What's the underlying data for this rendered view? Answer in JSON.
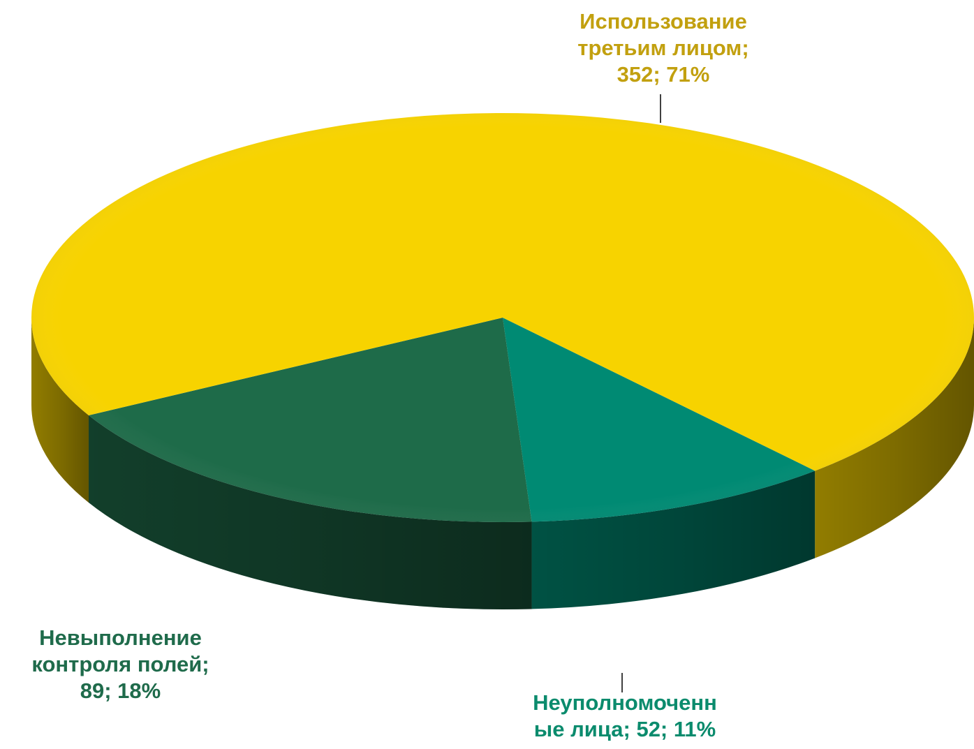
{
  "chart_data": {
    "type": "pie",
    "title": "",
    "labels": [
      "Использование третьим лицом",
      "Неуполномоченные лица",
      "Невыполнение контроля полей"
    ],
    "values": [
      352,
      52,
      89
    ],
    "percents": [
      71,
      11,
      18
    ],
    "colors": [
      "#F7D300",
      "#008A73",
      "#1E6B49"
    ],
    "label_colors": [
      "#C2A00F",
      "#0B8B6D",
      "#1F6B4B"
    ],
    "data_labels": [
      [
        "Использование",
        "третьим лицом;",
        "352; 71%"
      ],
      [
        "Неуполномоченн",
        "ые лица; 52; 11%"
      ],
      [
        "Невыполнение",
        "контроля полей;",
        "89; 18%"
      ]
    ],
    "style": "3d-pie",
    "legend": "none"
  }
}
